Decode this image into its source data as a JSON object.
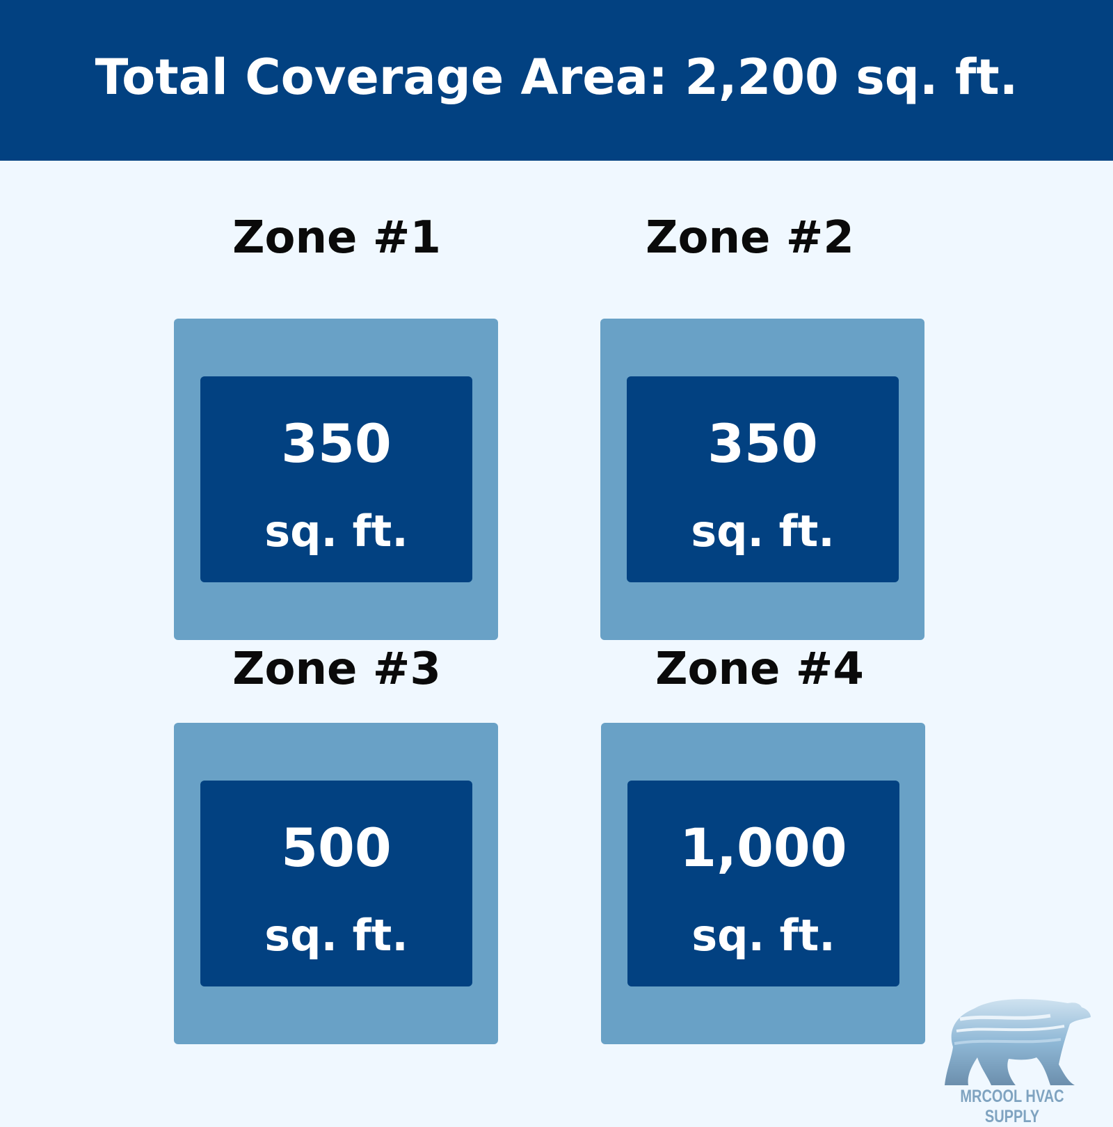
{
  "header": {
    "title": "Total Coverage Area: 2,200 sq. ft."
  },
  "colors": {
    "header_bg": "#024181",
    "outer_box": "#69a1c6",
    "inner_box": "#024181",
    "background": "#f0f8ff"
  },
  "zones": [
    {
      "title": "Zone #1",
      "value": "350",
      "unit": "sq. ft."
    },
    {
      "title": "Zone #2",
      "value": "350",
      "unit": "sq. ft."
    },
    {
      "title": "Zone #3",
      "value": "500",
      "unit": "sq. ft."
    },
    {
      "title": "Zone #4",
      "value": "1,000",
      "unit": "sq. ft."
    }
  ],
  "logo": {
    "text": "MRCOOL HVAC SUPPLY",
    "icon": "polar-bear-icon"
  }
}
